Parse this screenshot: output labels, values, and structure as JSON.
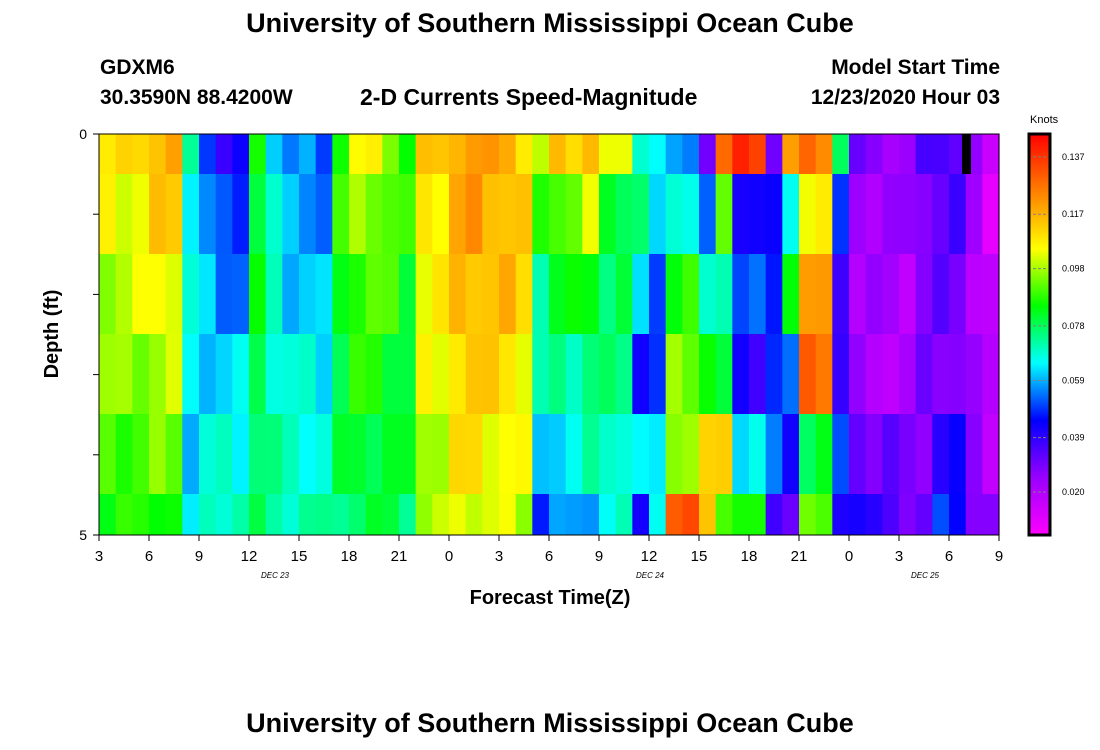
{
  "header": {
    "title_top": "University of Southern Mississippi Ocean Cube",
    "title_bottom": "University of Southern Mississippi Ocean Cube",
    "station": "GDXM6",
    "coordinates": "30.3590N 88.4200W",
    "chart_title": "2-D Currents Speed-Magnitude",
    "model_label": "Model Start Time",
    "model_time": "12/23/2020 Hour 03"
  },
  "colorbar": {
    "units": "Knots",
    "ticks": [
      0.02,
      0.039,
      0.059,
      0.078,
      0.098,
      0.117,
      0.137
    ],
    "min": 0.005,
    "max": 0.145,
    "colors": [
      "#ff00ff",
      "#9900ff",
      "#0000ff",
      "#00ffff",
      "#00ff00",
      "#ffff00",
      "#ff7f00",
      "#ff0000"
    ]
  },
  "chart_data": {
    "type": "heatmap",
    "title": "2-D Currents Speed-Magnitude",
    "xlabel": "Forecast Time(Z)",
    "ylabel": "Depth (ft)",
    "x_tick_labels": [
      "3",
      "6",
      "9",
      "12",
      "15",
      "18",
      "21",
      "0",
      "3",
      "6",
      "9",
      "12",
      "15",
      "18",
      "21",
      "0",
      "3",
      "6",
      "9"
    ],
    "date_labels": [
      "DEC 23",
      "DEC 24",
      "DEC 25"
    ],
    "y_tick_labels": [
      "0",
      "5"
    ],
    "ylim": [
      0,
      5
    ],
    "x_range_hours": [
      0,
      54
    ],
    "value_units": "Knots",
    "depth_rows": 6,
    "hourly_profile_surface_to_bottom": [
      [
        0.108,
        0.104,
        0.099,
        0.095,
        0.091,
        0.087
      ],
      [
        0.112,
        0.106,
        0.101,
        0.096,
        0.09,
        0.085
      ],
      [
        0.118,
        0.112,
        0.106,
        0.099,
        0.093,
        0.088
      ],
      [
        0.07,
        0.068,
        0.066,
        0.064,
        0.062,
        0.06
      ],
      [
        0.052,
        0.056,
        0.06,
        0.063,
        0.066,
        0.069
      ],
      [
        0.04,
        0.048,
        0.055,
        0.062,
        0.067,
        0.072
      ],
      [
        0.085,
        0.084,
        0.082,
        0.08,
        0.078,
        0.076
      ],
      [
        0.065,
        0.067,
        0.069,
        0.071,
        0.072,
        0.073
      ],
      [
        0.055,
        0.058,
        0.062,
        0.066,
        0.069,
        0.072
      ],
      [
        0.05,
        0.055,
        0.059,
        0.064,
        0.068,
        0.071
      ],
      [
        0.09,
        0.087,
        0.084,
        0.081,
        0.078,
        0.076
      ],
      [
        0.104,
        0.097,
        0.091,
        0.086,
        0.082,
        0.079
      ],
      [
        0.097,
        0.092,
        0.088,
        0.084,
        0.081,
        0.079
      ],
      [
        0.088,
        0.086,
        0.083,
        0.081,
        0.079,
        0.077
      ],
      [
        0.112,
        0.109,
        0.106,
        0.103,
        0.1,
        0.097
      ],
      [
        0.12,
        0.118,
        0.115,
        0.112,
        0.108,
        0.104
      ],
      [
        0.122,
        0.12,
        0.117,
        0.113,
        0.109,
        0.104
      ],
      [
        0.118,
        0.117,
        0.115,
        0.111,
        0.106,
        0.101
      ],
      [
        0.112,
        0.112,
        0.11,
        0.106,
        0.102,
        0.098
      ],
      [
        0.099,
        0.085,
        0.075,
        0.068,
        0.06,
        0.05
      ],
      [
        0.112,
        0.094,
        0.082,
        0.073,
        0.065,
        0.055
      ],
      [
        0.119,
        0.1,
        0.086,
        0.077,
        0.07,
        0.06
      ],
      [
        0.101,
        0.082,
        0.078,
        0.074,
        0.071,
        0.067
      ],
      [
        0.072,
        0.076,
        0.06,
        0.047,
        0.062,
        0.042
      ],
      [
        0.067,
        0.058,
        0.053,
        0.048,
        0.061,
        0.07
      ],
      [
        0.054,
        0.07,
        0.086,
        0.094,
        0.099,
        0.13
      ],
      [
        0.034,
        0.05,
        0.068,
        0.089,
        0.108,
        0.116
      ],
      [
        0.128,
        0.09,
        0.075,
        0.078,
        0.112,
        0.094
      ],
      [
        0.136,
        0.045,
        0.05,
        0.04,
        0.066,
        0.084
      ],
      [
        0.034,
        0.04,
        0.048,
        0.05,
        0.051,
        0.04
      ],
      [
        0.118,
        0.065,
        0.088,
        0.05,
        0.044,
        0.033
      ],
      [
        0.126,
        0.108,
        0.118,
        0.13,
        0.081,
        0.09
      ],
      [
        0.08,
        0.045,
        0.04,
        0.038,
        0.048,
        0.045
      ],
      [
        0.028,
        0.025,
        0.022,
        0.022,
        0.035,
        0.042
      ],
      [
        0.026,
        0.024,
        0.022,
        0.021,
        0.03,
        0.036
      ],
      [
        0.025,
        0.023,
        0.021,
        0.02,
        0.028,
        0.032
      ],
      [
        0.032,
        0.03,
        0.028,
        0.028,
        0.03,
        0.03
      ],
      [
        0.036,
        0.034,
        0.03,
        0.03,
        0.04,
        0.048
      ],
      [
        0.024,
        0.022,
        0.022,
        0.022,
        0.028,
        0.03
      ],
      [
        0.012,
        0.014,
        0.016,
        0.018,
        0.021,
        0.024
      ]
    ]
  },
  "axis_text": {
    "xlabel": "Forecast Time(Z)",
    "ylabel": "Depth (ft)"
  }
}
